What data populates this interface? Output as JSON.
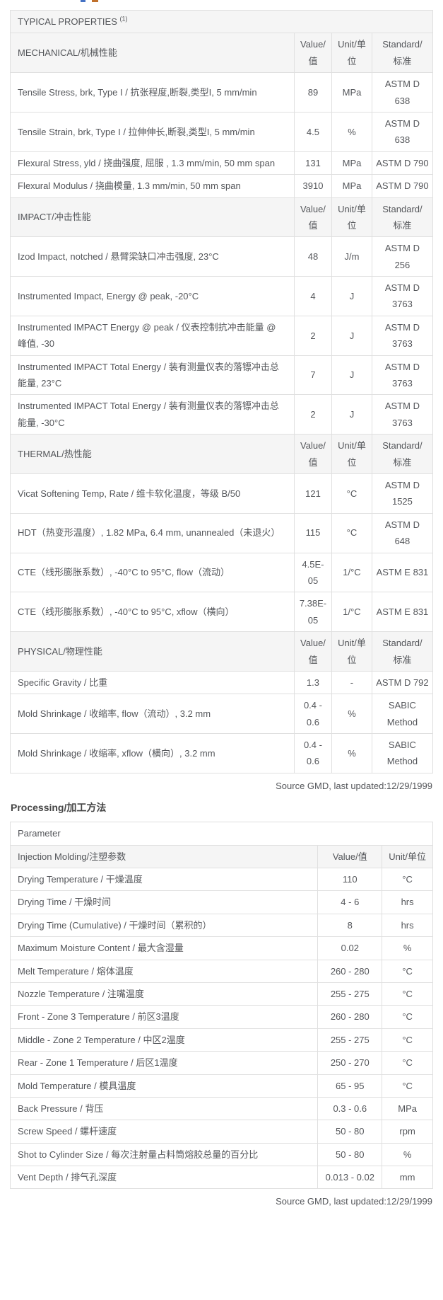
{
  "typical_properties": {
    "title": "TYPICAL PROPERTIES",
    "title_superscript": "(1)",
    "column_headers": {
      "value": "Value/\n值",
      "unit": "Unit/单\n位",
      "standard": "Standard/\n标准"
    },
    "sections": [
      {
        "label": "MECHANICAL/机械性能",
        "rows": [
          {
            "property": "Tensile Stress, brk, Type I / 抗张程度,断裂,类型I, 5 mm/min",
            "value": "89",
            "unit": "MPa",
            "standard": "ASTM D\n638"
          },
          {
            "property": "Tensile Strain, brk, Type I / 拉伸伸长,断裂,类型I, 5 mm/min",
            "value": "4.5",
            "unit": "%",
            "standard": "ASTM D\n638"
          },
          {
            "property": "Flexural Stress, yld / 挠曲强度, 屈服 , 1.3 mm/min, 50 mm span",
            "value": "131",
            "unit": "MPa",
            "standard": "ASTM D 790"
          },
          {
            "property": "Flexural Modulus / 挠曲模量, 1.3 mm/min, 50 mm span",
            "value": "3910",
            "unit": "MPa",
            "standard": "ASTM D 790"
          }
        ]
      },
      {
        "label": "IMPACT/冲击性能",
        "rows": [
          {
            "property": "Izod Impact, notched / 悬臂梁缺口冲击强度, 23°C",
            "value": "48",
            "unit": "J/m",
            "standard": "ASTM D\n256"
          },
          {
            "property": "Instrumented Impact, Energy @ peak, -20°C",
            "value": "4",
            "unit": "J",
            "standard": "ASTM D\n3763"
          },
          {
            "property": "Instrumented IMPACT Energy @ peak / 仪表控制抗冲击能量 @ 峰值, -30",
            "value": "2",
            "unit": "J",
            "standard": "ASTM D\n3763"
          },
          {
            "property": "Instrumented IMPACT Total Energy / 装有测量仪表的落镖冲击总能量, 23°C",
            "value": "7",
            "unit": "J",
            "standard": "ASTM D\n3763"
          },
          {
            "property": "Instrumented IMPACT Total Energy / 装有测量仪表的落镖冲击总能量, -30°C",
            "value": "2",
            "unit": "J",
            "standard": "ASTM D\n3763"
          }
        ]
      },
      {
        "label": "THERMAL/热性能",
        "rows": [
          {
            "property": "Vicat Softening Temp, Rate / 维卡软化温度，等级 B/50",
            "value": "121",
            "unit": "°C",
            "standard": "ASTM D\n1525"
          },
          {
            "property": "HDT（热变形温度）, 1.82 MPa, 6.4 mm, unannealed（未退火）",
            "value": "115",
            "unit": "°C",
            "standard": "ASTM D\n648"
          },
          {
            "property": "CTE（线形膨胀系数）, -40°C to 95°C, flow（流动）",
            "value": "4.5E-\n05",
            "unit": "1/°C",
            "standard": "ASTM E 831"
          },
          {
            "property": "CTE（线形膨胀系数）, -40°C to 95°C, xflow（横向）",
            "value": "7.38E-\n05",
            "unit": "1/°C",
            "standard": "ASTM E 831"
          }
        ]
      },
      {
        "label": "PHYSICAL/物理性能",
        "rows": [
          {
            "property": "Specific Gravity / 比重",
            "value": "1.3",
            "unit": "-",
            "standard": "ASTM D 792"
          },
          {
            "property": "Mold Shrinkage / 收缩率, flow（流动）, 3.2 mm",
            "value": "0.4 -\n0.6",
            "unit": "%",
            "standard": "SABIC\nMethod"
          },
          {
            "property": "Mold Shrinkage / 收缩率, xflow（横向）, 3.2 mm",
            "value": "0.4 -\n0.6",
            "unit": "%",
            "standard": "SABIC\nMethod"
          }
        ]
      }
    ],
    "source_note": "Source GMD, last updated:12/29/1999"
  },
  "processing": {
    "heading": "Processing/加工方法",
    "table_title": "Parameter",
    "group_label": "Injection Molding/注塑参数",
    "column_headers": {
      "value": "Value/值",
      "unit": "Unit/单位"
    },
    "rows": [
      {
        "parameter": "Drying Temperature / 干燥温度",
        "value": "110",
        "unit": "°C"
      },
      {
        "parameter": "Drying Time / 干燥时间",
        "value": "4 - 6",
        "unit": "hrs"
      },
      {
        "parameter": "Drying Time (Cumulative) / 干燥时间（累积的）",
        "value": "8",
        "unit": "hrs"
      },
      {
        "parameter": "Maximum Moisture Content / 最大含湿量",
        "value": "0.02",
        "unit": "%"
      },
      {
        "parameter": "Melt Temperature / 熔体温度",
        "value": "260 - 280",
        "unit": "°C"
      },
      {
        "parameter": "Nozzle Temperature / 注嘴温度",
        "value": "255 - 275",
        "unit": "°C"
      },
      {
        "parameter": "Front - Zone 3 Temperature / 前区3温度",
        "value": "260 - 280",
        "unit": "°C"
      },
      {
        "parameter": "Middle - Zone 2 Temperature / 中区2温度",
        "value": "255 - 275",
        "unit": "°C"
      },
      {
        "parameter": "Rear - Zone 1 Temperature / 后区1温度",
        "value": "250 - 270",
        "unit": "°C"
      },
      {
        "parameter": "Mold Temperature / 模具温度",
        "value": "65 - 95",
        "unit": "°C"
      },
      {
        "parameter": "Back Pressure / 背压",
        "value": "0.3 - 0.6",
        "unit": "MPa"
      },
      {
        "parameter": "Screw Speed / 螺杆速度",
        "value": "50 - 80",
        "unit": "rpm"
      },
      {
        "parameter": "Shot to Cylinder Size / 每次注射量占料筒熔胶总量的百分比",
        "value": "50 - 80",
        "unit": "%"
      },
      {
        "parameter": "Vent Depth / 排气孔深度",
        "value": "0.013 - 0.02",
        "unit": "mm"
      }
    ],
    "source_note": "Source GMD, last updated:12/29/1999"
  },
  "colors": {
    "text": "#54565a",
    "header_row_bg": "#f5f5f5",
    "outer_border": "#4f4f4f",
    "inner_border": "#e0e0e0"
  }
}
